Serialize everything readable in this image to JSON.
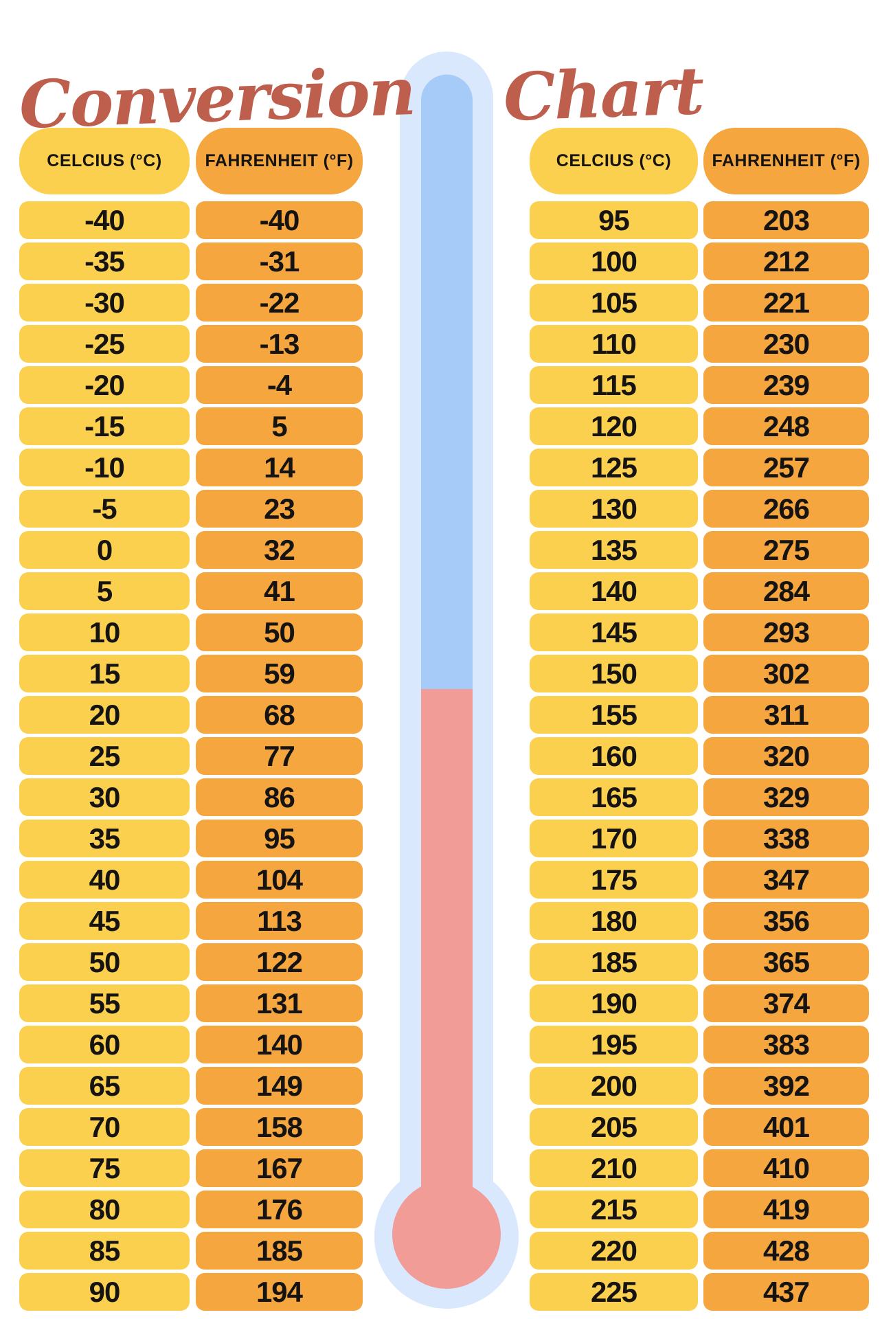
{
  "title": {
    "left_word": "Conversion",
    "right_word": "Chart"
  },
  "headers": {
    "celsius": "CELCIUS (°C)",
    "fahrenheit": "FAHRENHEIT (°F)"
  },
  "graphic": "thermometer",
  "colors": {
    "bg": "#ffffff",
    "title_red": "#be5f4e",
    "yellow": "#fbd04f",
    "orange": "#f6a63f",
    "text_dark": "#161412",
    "tube_outer": "#d9e8fc",
    "tube_blue": "#a7cbf8",
    "mercury_pink": "#f29c98"
  },
  "chart_data": {
    "type": "table",
    "title": "Conversion Chart",
    "columns": [
      "CELCIUS (°C)",
      "FAHRENHEIT (°F)"
    ],
    "tables": [
      {
        "position": "left",
        "rows": [
          [
            -40,
            -40
          ],
          [
            -35,
            -31
          ],
          [
            -30,
            -22
          ],
          [
            -25,
            -13
          ],
          [
            -20,
            -4
          ],
          [
            -15,
            5
          ],
          [
            -10,
            14
          ],
          [
            -5,
            23
          ],
          [
            0,
            32
          ],
          [
            5,
            41
          ],
          [
            10,
            50
          ],
          [
            15,
            59
          ],
          [
            20,
            68
          ],
          [
            25,
            77
          ],
          [
            30,
            86
          ],
          [
            35,
            95
          ],
          [
            40,
            104
          ],
          [
            45,
            113
          ],
          [
            50,
            122
          ],
          [
            55,
            131
          ],
          [
            60,
            140
          ],
          [
            65,
            149
          ],
          [
            70,
            158
          ],
          [
            75,
            167
          ],
          [
            80,
            176
          ],
          [
            85,
            185
          ],
          [
            90,
            194
          ]
        ]
      },
      {
        "position": "right",
        "rows": [
          [
            95,
            203
          ],
          [
            100,
            212
          ],
          [
            105,
            221
          ],
          [
            110,
            230
          ],
          [
            115,
            239
          ],
          [
            120,
            248
          ],
          [
            125,
            257
          ],
          [
            130,
            266
          ],
          [
            135,
            275
          ],
          [
            140,
            284
          ],
          [
            145,
            293
          ],
          [
            150,
            302
          ],
          [
            155,
            311
          ],
          [
            160,
            320
          ],
          [
            165,
            329
          ],
          [
            170,
            338
          ],
          [
            175,
            347
          ],
          [
            180,
            356
          ],
          [
            185,
            365
          ],
          [
            190,
            374
          ],
          [
            195,
            383
          ],
          [
            200,
            392
          ],
          [
            205,
            401
          ],
          [
            210,
            410
          ],
          [
            215,
            419
          ],
          [
            220,
            428
          ],
          [
            225,
            437
          ]
        ]
      }
    ]
  }
}
